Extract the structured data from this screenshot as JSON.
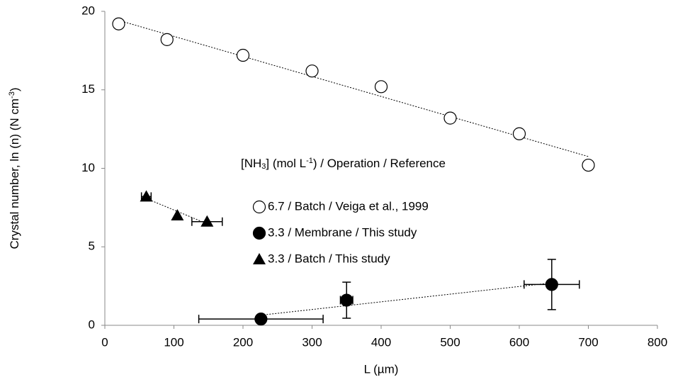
{
  "chart_data": {
    "type": "scatter",
    "x_label": "L (µm)",
    "y_label": [
      "Crystal number, ln (n)  (N cm",
      "-3",
      ")"
    ],
    "legend_title": [
      "[NH",
      "3",
      "] (mol L",
      "-1",
      ") / Operation / Reference"
    ],
    "xlim": [
      0,
      800
    ],
    "xticks": [
      0,
      100,
      200,
      300,
      400,
      500,
      600,
      700,
      800
    ],
    "ylim": [
      0,
      20
    ],
    "yticks": [
      0,
      5,
      10,
      15,
      20
    ],
    "grid": false,
    "trendline": true,
    "series": [
      {
        "name": "6.7 / Batch / Veiga et al., 1999",
        "marker": "open-circle",
        "color": "#000000",
        "x": [
          20,
          90,
          200,
          300,
          400,
          500,
          600,
          700
        ],
        "values": [
          19.2,
          18.2,
          17.2,
          16.2,
          15.2,
          13.2,
          12.2,
          10.2
        ]
      },
      {
        "name": "3.3 / Membrane / This study",
        "marker": "circle",
        "color": "#000000",
        "x": [
          226,
          350,
          647
        ],
        "values": [
          0.4,
          1.6,
          2.6
        ],
        "x_err": [
          90,
          9,
          40
        ],
        "y_err": [
          null,
          1.15,
          1.6
        ]
      },
      {
        "name": "3.3 / Batch / This study",
        "marker": "triangle",
        "color": "#000000",
        "x": [
          60,
          105,
          148
        ],
        "values": [
          8.2,
          7.0,
          6.6
        ],
        "x_err": [
          7,
          null,
          22
        ]
      }
    ]
  }
}
